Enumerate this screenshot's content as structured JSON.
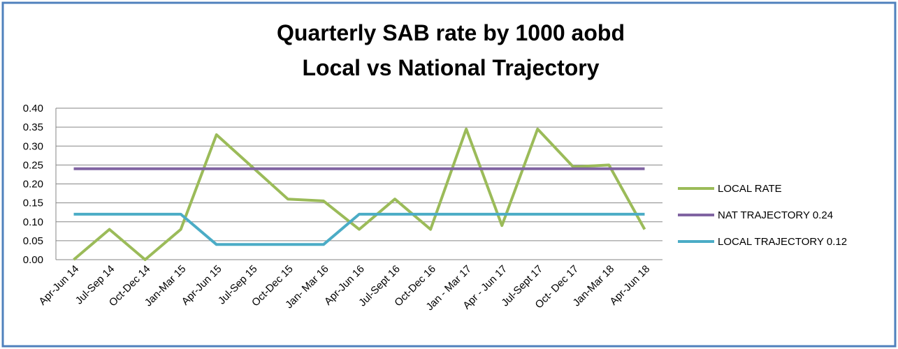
{
  "chart_data": {
    "type": "line",
    "title": "Quarterly SAB rate by 1000 aobd",
    "subtitle": "Local vs National Trajectory",
    "categories": [
      "Apr-Jun 14",
      "Jul-Sep 14",
      "Oct-Dec 14",
      "Jan-Mar 15",
      "Apr-Jun 15",
      "Jul-Sep 15",
      "Oct-Dec 15",
      "Jan- Mar 16",
      "Apr-Jun 16",
      "Jul-Sept 16",
      "Oct-Dec 16",
      "Jan - Mar 17",
      "Apr - Jun 17",
      "Jul-Sept 17",
      "Oct- Dec 17",
      "Jan-Mar 18",
      "Apr-Jun 18"
    ],
    "series": [
      {
        "name": "LOCAL RATE",
        "color": "#9bbb59",
        "values": [
          0,
          0.08,
          0,
          0.08,
          0.33,
          0.245,
          0.16,
          0.155,
          0.08,
          0.16,
          0.08,
          0.345,
          0.09,
          0.345,
          0.245,
          0.25,
          0.08
        ]
      },
      {
        "name": "NAT TRAJECTORY 0.24",
        "color": "#8064a2",
        "values": [
          0.24,
          0.24,
          0.24,
          0.24,
          0.24,
          0.24,
          0.24,
          0.24,
          0.24,
          0.24,
          0.24,
          0.24,
          0.24,
          0.24,
          0.24,
          0.24,
          0.24
        ]
      },
      {
        "name": "LOCAL TRAJECTORY 0.12",
        "color": "#4bacc6",
        "values": [
          0.12,
          0.12,
          0.12,
          0.12,
          0.04,
          0.04,
          0.04,
          0.04,
          0.12,
          0.12,
          0.12,
          0.12,
          0.12,
          0.12,
          0.12,
          0.12,
          0.12
        ]
      }
    ],
    "ylim": [
      0,
      0.4
    ],
    "yticks": [
      {
        "value": 0,
        "label": "0.00"
      },
      {
        "value": 0.05,
        "label": "0.05"
      },
      {
        "value": 0.1,
        "label": "0.10"
      },
      {
        "value": 0.15,
        "label": "0.15"
      },
      {
        "value": 0.2,
        "label": "0.20"
      },
      {
        "value": 0.25,
        "label": "0.25"
      },
      {
        "value": 0.3,
        "label": "0.30"
      },
      {
        "value": 0.35,
        "label": "0.35"
      },
      {
        "value": 0.4,
        "label": "0.40"
      }
    ],
    "grid": true,
    "legend": "right"
  }
}
